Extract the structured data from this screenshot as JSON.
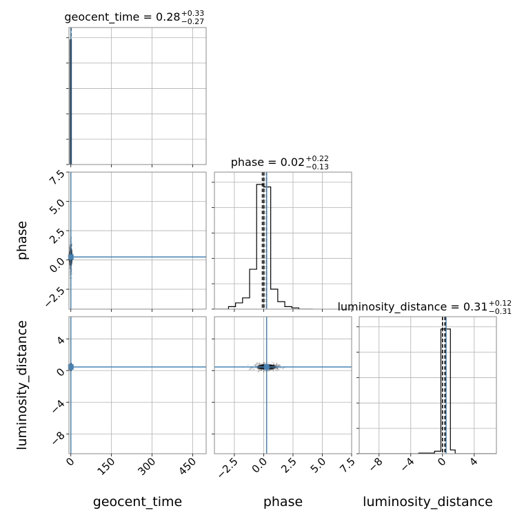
{
  "chart_data": {
    "type": "corner",
    "parameters": [
      "geocent_time",
      "phase",
      "luminosity_distance"
    ],
    "truths": {
      "geocent_time": 0.0,
      "phase": 0.25,
      "luminosity_distance": 0.45
    },
    "titles": [
      {
        "param": "geocent_time",
        "text": "geocent_time = 0.28",
        "sup": "+0.33",
        "sub": "−0.27"
      },
      {
        "param": "phase",
        "text": "phase = 0.02",
        "sup": "+0.22",
        "sub": "−0.13"
      },
      {
        "param": "luminosity_distance",
        "text": "luminosity_distance = 0.31",
        "sup": "+0.12",
        "sub": "−0.31"
      }
    ],
    "axis_labels": {
      "x": [
        "geocent_time",
        "phase",
        "luminosity_distance"
      ],
      "y": [
        "phase",
        "luminosity_distance"
      ]
    },
    "ranges": {
      "geocent_time": [
        -7,
        500
      ],
      "phase": [
        -4.2,
        7.5
      ],
      "luminosity_distance": [
        -10.5,
        6.8
      ]
    },
    "ticks": {
      "geocent_time": [
        0,
        150,
        300,
        450
      ],
      "phase": [
        -2.5,
        0.0,
        2.5,
        5.0,
        7.5
      ],
      "luminosity_distance": [
        -8,
        -4,
        0,
        4
      ]
    },
    "tick_labels": {
      "geocent_time": [
        "0",
        "150",
        "300",
        "450"
      ],
      "phase": [
        "−2.5",
        "0.0",
        "2.5",
        "5.0",
        "7.5"
      ],
      "luminosity_distance": [
        "−8",
        "−4",
        "0",
        "4"
      ]
    },
    "quantiles": {
      "geocent_time": [
        0.01,
        0.28,
        0.61
      ],
      "phase": [
        -0.11,
        0.02,
        0.24
      ],
      "luminosity_distance": [
        0.0,
        0.31,
        0.43
      ]
    },
    "histograms": {
      "geocent_time": {
        "edges": [
          -7,
          -2.5,
          2,
          6.5
        ],
        "counts": [
          0.0,
          1.0,
          0.0
        ]
      },
      "phase": {
        "edges": [
          -4.2,
          -3.6,
          -3.0,
          -2.4,
          -1.8,
          -1.2,
          -0.6,
          0.0,
          0.6,
          1.2,
          1.8,
          2.4,
          3.0,
          3.6,
          4.2
        ],
        "counts": [
          0.0,
          0.0,
          0.02,
          0.05,
          0.09,
          0.32,
          1.0,
          0.98,
          0.16,
          0.06,
          0.02,
          0.01,
          0.0,
          0.0
        ]
      },
      "luminosity_distance": {
        "edges": [
          -10.5,
          -8.0,
          -5.5,
          -3.0,
          -1.0,
          -0.2,
          0.4,
          1.0,
          1.6,
          2.6,
          6.8
        ],
        "counts": [
          0.0,
          0.0,
          0.0,
          0.005,
          0.02,
          1.0,
          1.0,
          0.03,
          0.0,
          0.0
        ]
      }
    },
    "colors": {
      "truth": "#4682b4",
      "hist": "#000000",
      "scatter": "#000000",
      "grid": "#b0b0b0"
    },
    "grid": true
  }
}
